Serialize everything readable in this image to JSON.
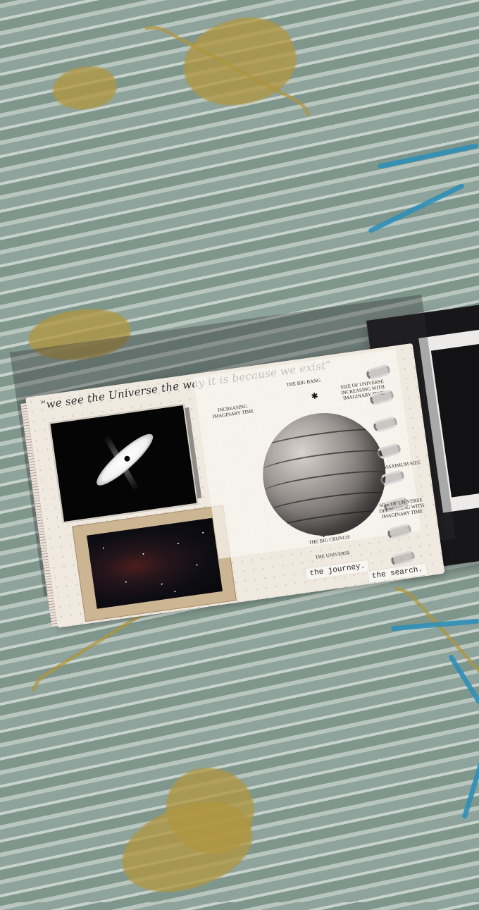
{
  "journal": {
    "quote_text": "“we see the Universe the way it is because we exist”",
    "diagram": {
      "top_left_label": "INCREASING\nIMAGINARY TIME",
      "top_label": "THE BIG BANG",
      "top_right_label": "SIZE OF UNIVERSE\nINCREASING WITH\nIMAGINARY TIME",
      "middle_right_label": "MAXIMUM SIZE",
      "bottom_right_label": "SIZE OF UNIVERSE\nDECREASING WITH\nIMAGINARY TIME",
      "bottom_label": "THE BIG CRUNCH",
      "caption": "THE UNIVERSE"
    },
    "tags": {
      "tag1": "the journey.",
      "tag2": "the search."
    }
  },
  "colors": {
    "fabric": "#8ea39b",
    "flower_mustard": "#b09640",
    "accent_blue": "#2f8fb8",
    "cover": "#17171a",
    "paper": "#efe9e0"
  }
}
